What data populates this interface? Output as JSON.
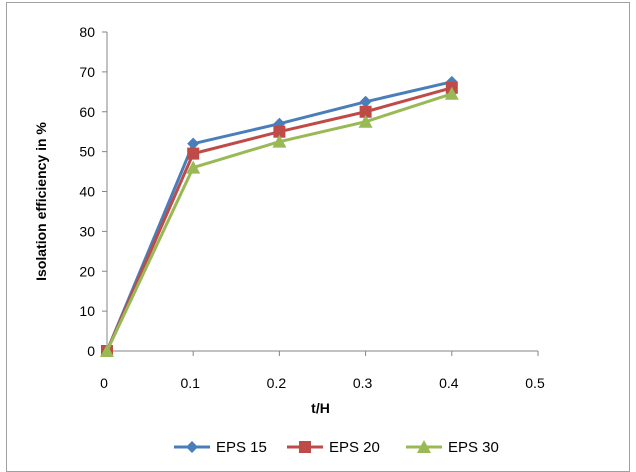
{
  "chart_data": {
    "type": "line",
    "xlabel": "t/H",
    "ylabel": "Isolation efficiency in %",
    "xlim": [
      0,
      0.5
    ],
    "ylim": [
      0,
      80
    ],
    "xticks": [
      "0",
      "0.1",
      "0.2",
      "0.3",
      "0.4",
      "0.5"
    ],
    "yticks": [
      "0",
      "10",
      "20",
      "30",
      "40",
      "50",
      "60",
      "70",
      "80"
    ],
    "grid": false,
    "legend_position": "bottom",
    "x": [
      0,
      0.1,
      0.2,
      0.3,
      0.4
    ],
    "series": [
      {
        "name": "EPS 15",
        "color": "#4a7ebb",
        "marker": "diamond",
        "values": [
          0,
          52,
          57,
          62.5,
          67.5
        ]
      },
      {
        "name": "EPS 20",
        "color": "#be4b48",
        "marker": "square",
        "values": [
          0,
          49.5,
          55,
          60,
          66
        ]
      },
      {
        "name": "EPS 30",
        "color": "#98b954",
        "marker": "triangle",
        "values": [
          0,
          46,
          52.5,
          57.5,
          64.5
        ]
      }
    ]
  }
}
